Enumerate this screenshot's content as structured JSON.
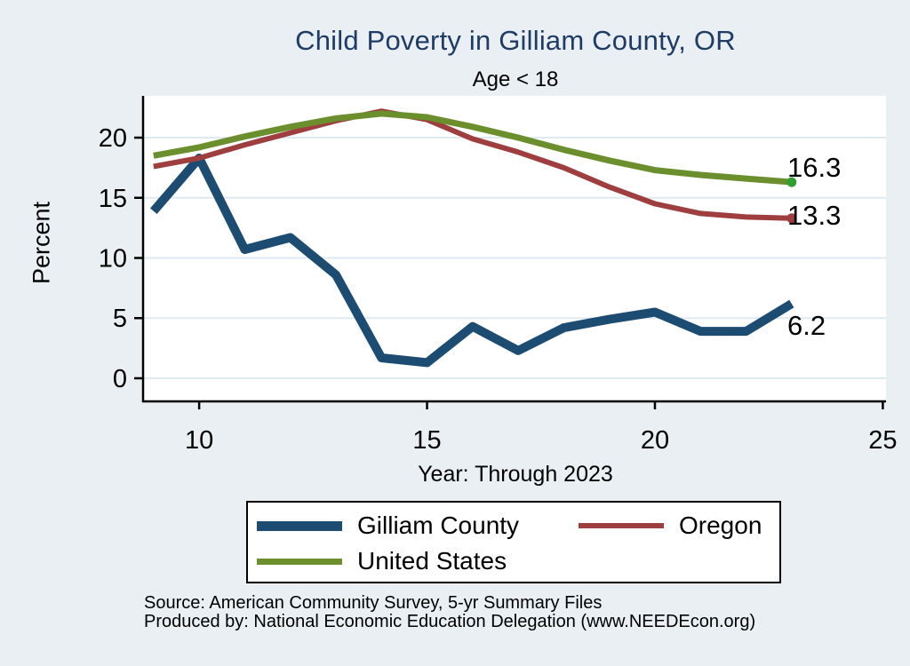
{
  "page": {
    "background": "#E9EFF2"
  },
  "header": {
    "title": "Child Poverty in Gilliam County, OR",
    "subtitle": "Age < 18",
    "title_color": "#1F3C66"
  },
  "chart_data": {
    "type": "line",
    "title": "Child Poverty in Gilliam County, OR",
    "subtitle": "Age < 18",
    "xlabel": "Year: Through 2023",
    "ylabel": "Percent",
    "x": [
      9,
      10,
      11,
      12,
      13,
      14,
      15,
      16,
      17,
      18,
      19,
      20,
      21,
      22,
      23
    ],
    "series": [
      {
        "name": "Gilliam County",
        "color": "#1C4C72",
        "line_width": 10,
        "values": [
          13.9,
          18.3,
          10.7,
          11.7,
          8.6,
          1.7,
          1.3,
          4.3,
          2.3,
          4.2,
          4.9,
          5.5,
          3.9,
          3.9,
          6.2
        ],
        "end_label": "6.2"
      },
      {
        "name": "Oregon",
        "color": "#9E3E3E",
        "line_width": 6,
        "values": [
          17.6,
          18.3,
          19.4,
          20.4,
          21.4,
          22.2,
          21.5,
          19.9,
          18.8,
          17.5,
          15.9,
          14.5,
          13.7,
          13.4,
          13.3
        ],
        "end_label": "13.3",
        "end_dot_color": "#9E3E3E"
      },
      {
        "name": "United States",
        "color": "#6B8F2D",
        "line_width": 7,
        "values": [
          18.5,
          19.2,
          20.1,
          20.9,
          21.6,
          22.0,
          21.7,
          20.9,
          20.0,
          19.0,
          18.1,
          17.3,
          16.9,
          16.6,
          16.3
        ],
        "end_label": "16.3",
        "end_dot_color": "#2FA02F"
      }
    ],
    "xticks": [
      10,
      15,
      20,
      25
    ],
    "yticks": [
      0,
      5,
      10,
      15,
      20
    ],
    "xlim": [
      8.75,
      25.07
    ],
    "ylim": [
      -1.92,
      23.47
    ],
    "grid": true,
    "gridline_color": "#DFE9F0",
    "plot_background": "#FFFFFF",
    "axis_color": "#000000",
    "legend_position": "bottom"
  },
  "footer": {
    "source": "Source: American Community Survey, 5-yr Summary Files",
    "produced_by": "Produced by: National Economic Education Delegation (www.NEEDEcon.org)"
  }
}
